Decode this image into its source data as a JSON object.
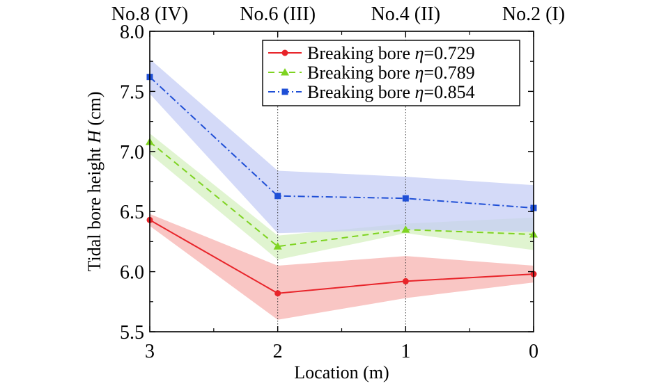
{
  "chart_data": {
    "type": "line",
    "xlabel": "Location (m)",
    "ylabel": "Tidal bore height H (cm)",
    "ylabel_prefix": "Tidal bore height ",
    "ylabel_var": "H",
    "ylabel_suffix": " (cm)",
    "xlim": [
      3,
      0
    ],
    "ylim": [
      5.5,
      8.0
    ],
    "x_ticks": [
      3,
      2,
      1,
      0
    ],
    "x_tick_labels": [
      "3",
      "2",
      "1",
      "0"
    ],
    "y_ticks": [
      5.5,
      6.0,
      6.5,
      7.0,
      7.5,
      8.0
    ],
    "y_tick_labels": [
      "5.5",
      "6.0",
      "6.5",
      "7.0",
      "7.5",
      "8.0"
    ],
    "top_labels": [
      {
        "x": 3,
        "text": "No.8 (IV)"
      },
      {
        "x": 2,
        "text": "No.6 (III)"
      },
      {
        "x": 1,
        "text": "No.4 (II)"
      },
      {
        "x": 0,
        "text": "No.2 (I)"
      }
    ],
    "vertical_lines": [
      2,
      1
    ],
    "legend_position": "top-right",
    "series": [
      {
        "name": "Breaking bore η=0.729",
        "name_prefix": "Breaking bore ",
        "name_var": "η",
        "name_value": "=0.729",
        "color": "#e8242a",
        "band_color": "#f7b3b0",
        "line_style": "solid",
        "marker": "circle",
        "x": [
          3,
          2,
          1,
          0
        ],
        "y": [
          6.43,
          5.82,
          5.92,
          5.98
        ],
        "upper": [
          6.48,
          6.05,
          6.13,
          6.05
        ],
        "lower": [
          6.38,
          5.6,
          5.78,
          5.91
        ]
      },
      {
        "name": "Breaking bore η=0.789",
        "name_prefix": "Breaking bore ",
        "name_var": "η",
        "name_value": "=0.789",
        "color": "#7ed321",
        "band_color": "#d5f0c0",
        "line_style": "dashed",
        "marker": "triangle",
        "x": [
          3,
          2,
          1,
          0
        ],
        "y": [
          7.08,
          6.21,
          6.35,
          6.31
        ],
        "upper": [
          7.15,
          6.3,
          6.4,
          6.45
        ],
        "lower": [
          6.98,
          6.1,
          6.32,
          6.18
        ]
      },
      {
        "name": "Breaking bore η=0.854",
        "name_prefix": "Breaking bore ",
        "name_var": "η",
        "name_value": "=0.854",
        "color": "#1f4fd6",
        "band_color": "#c6cdf5",
        "line_style": "dashdot",
        "marker": "square",
        "x": [
          3,
          2,
          1,
          0
        ],
        "y": [
          7.62,
          6.63,
          6.61,
          6.53
        ],
        "upper": [
          7.77,
          6.84,
          6.79,
          6.72
        ],
        "lower": [
          7.48,
          6.32,
          6.35,
          6.33
        ]
      }
    ]
  }
}
